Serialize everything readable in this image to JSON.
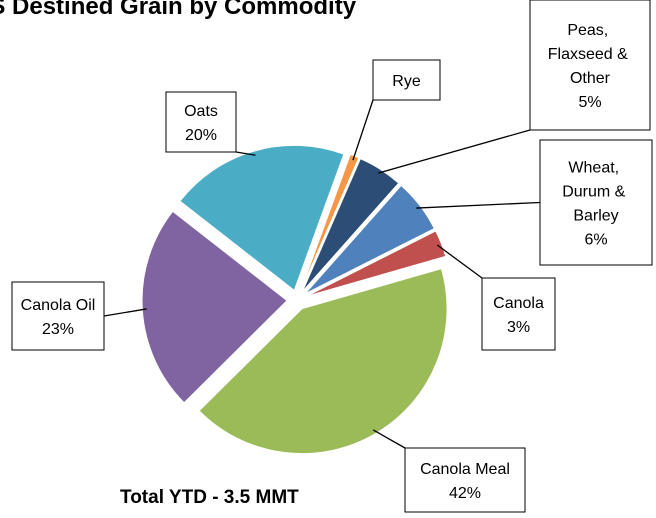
{
  "chart_data": {
    "type": "pie",
    "title": "US Destined Grain by Commodity",
    "annotation": "Total YTD - 3.5 MMT",
    "categories": [
      "Rye",
      "Peas, Flaxseed & Other",
      "Wheat, Durum & Barley",
      "Canola",
      "Canola Meal",
      "Canola Oil",
      "Oats"
    ],
    "values": [
      1,
      5,
      6,
      3,
      42,
      23,
      20
    ],
    "value_labels": [
      null,
      "5%",
      "6%",
      "3%",
      "42%",
      "23%",
      "20%"
    ],
    "colors": [
      "#f79646",
      "#2c4d75",
      "#4f81bd",
      "#c0504d",
      "#9bbb59",
      "#8064a2",
      "#4bacc6"
    ]
  }
}
